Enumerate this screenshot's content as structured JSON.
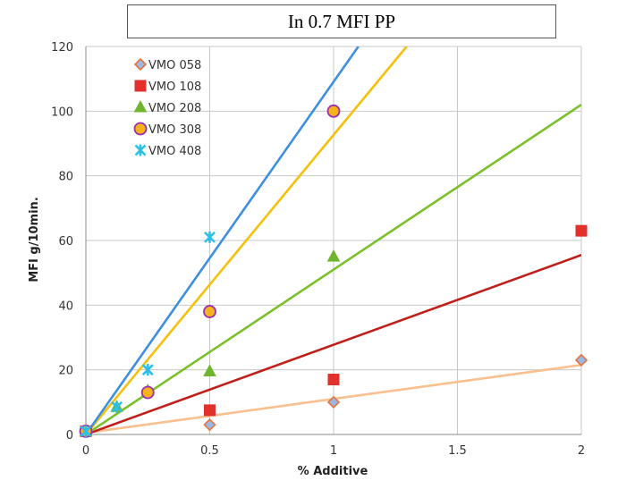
{
  "chart_data": {
    "type": "scatter",
    "title": "In 0.7 MFI PP",
    "xlabel": "% Additive",
    "ylabel": "MFI g/10min.",
    "xlim": [
      0,
      2
    ],
    "ylim": [
      0,
      120
    ],
    "x_ticks": [
      "0",
      "0.5",
      "1",
      "1.5",
      "2"
    ],
    "y_ticks": [
      "0",
      "20",
      "40",
      "60",
      "80",
      "100",
      "120"
    ],
    "grid": true,
    "legend_position": "top-left",
    "series": [
      {
        "name": "VMO 058",
        "marker": "diamond",
        "color": "#9ab8e6",
        "edge": "#e8733a",
        "line_color": "#f9bf8c",
        "points": [
          [
            0,
            1
          ],
          [
            0.5,
            3
          ],
          [
            1,
            10
          ],
          [
            2,
            23
          ]
        ],
        "trendline": [
          [
            0,
            0.5
          ],
          [
            2,
            21.5
          ]
        ]
      },
      {
        "name": "VMO 108",
        "marker": "square",
        "color": "#e0312b",
        "edge": "#e0312b",
        "line_color": "#c0201b",
        "points": [
          [
            0,
            1
          ],
          [
            0.5,
            7.5
          ],
          [
            1,
            17
          ],
          [
            2,
            63
          ]
        ],
        "trendline": [
          [
            0,
            0
          ],
          [
            2,
            55.5
          ]
        ]
      },
      {
        "name": "VMO 208",
        "marker": "triangle",
        "color": "#6fb52d",
        "edge": "#6fb52d",
        "line_color": "#7bbf2a",
        "points": [
          [
            0,
            1
          ],
          [
            0.125,
            8.5
          ],
          [
            0.25,
            13.5
          ],
          [
            0.5,
            19.5
          ],
          [
            1,
            55
          ]
        ],
        "trendline": [
          [
            0,
            0
          ],
          [
            2,
            102
          ]
        ]
      },
      {
        "name": "VMO 308",
        "marker": "circle",
        "color": "#f6b21c",
        "edge": "#9b2fae",
        "line_color": "#f5c00b",
        "points": [
          [
            0,
            1
          ],
          [
            0.25,
            13
          ],
          [
            0.5,
            38
          ],
          [
            1,
            100
          ]
        ],
        "trendline": [
          [
            0,
            0
          ],
          [
            1.295,
            120
          ]
        ]
      },
      {
        "name": "VMO 408",
        "marker": "x",
        "color": "#2bc0e8",
        "edge": "#2bc0e8",
        "line_color": "#3f8fe0",
        "points": [
          [
            0,
            1
          ],
          [
            0.125,
            8.5
          ],
          [
            0.25,
            20
          ],
          [
            0.5,
            61
          ]
        ],
        "trendline": [
          [
            0,
            0
          ],
          [
            1.1,
            120
          ]
        ]
      }
    ]
  }
}
